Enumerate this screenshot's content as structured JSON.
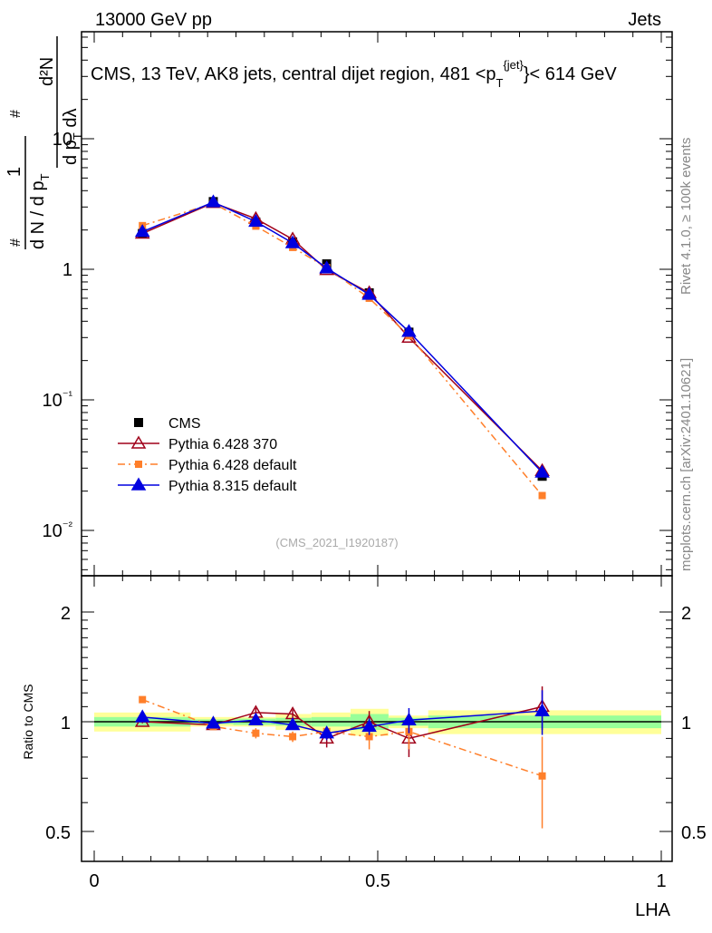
{
  "chart_data": [
    {
      "type": "line",
      "header_left": "13000 GeV pp",
      "header_right": "Jets",
      "title": "CMS, 13 TeV, AK8 jets, central dijet region, 481 <p_T^{jet}< 614 GeV",
      "title_main": "CMS, 13 TeV, AK8 jets, central dijet region, 481 <p",
      "title_sub": "T",
      "title_sup": "{jet}",
      "title_end": "}< 614 GeV",
      "ylabel": "1/(dN/dp_T) d²N/(dp_T dλ)",
      "ylabel_parts": {
        "num": "1",
        "den": "d N / d p",
        "den_sub": "T",
        "num2": "d²N",
        "den2": "d p",
        "den2_sub": "T",
        "den2_end": " dλ",
        "hash": "#"
      },
      "yscale": "log",
      "ylim": [
        0.005,
        60
      ],
      "ytick_labels": [
        "10",
        "1",
        "10⁻¹",
        "10⁻²"
      ],
      "ytick_values": [
        10,
        1,
        0.1,
        0.01
      ],
      "annotation": "(CMS_2021_I1920187)",
      "side_label_top": "Rivet 4.1.0, ≥ 100k events",
      "side_label_bottom": "mcplots.cern.ch [arXiv:2401.10621]",
      "legend_position": "lower-left",
      "x": [
        0.085,
        0.21,
        0.285,
        0.35,
        0.41,
        0.485,
        0.555,
        0.79
      ],
      "bin_edges": [
        0,
        0.17,
        0.245,
        0.32,
        0.383,
        0.452,
        0.519,
        0.589,
        1.0
      ],
      "series": [
        {
          "name": "CMS",
          "color": "#000000",
          "marker": "square",
          "values": [
            1.88,
            3.3,
            2.3,
            1.62,
            1.1,
            0.66,
            0.33,
            0.026
          ]
        },
        {
          "name": "Pythia 6.428 370",
          "color": "#a0001a",
          "marker": "open-triangle",
          "line": "solid",
          "values": [
            1.88,
            3.23,
            2.44,
            1.7,
            0.99,
            0.66,
            0.3,
            0.0286
          ]
        },
        {
          "name": "Pythia 6.428 default",
          "color": "#ff7f2a",
          "marker": "square",
          "line": "dashdot",
          "values": [
            2.16,
            3.2,
            2.14,
            1.47,
            1.03,
            0.6,
            0.31,
            0.0185
          ]
        },
        {
          "name": "Pythia 8.315 default",
          "color": "#0000e0",
          "marker": "triangle",
          "line": "solid",
          "values": [
            1.94,
            3.27,
            2.32,
            1.59,
            1.02,
            0.64,
            0.333,
            0.0278
          ]
        }
      ]
    },
    {
      "type": "line",
      "ylabel": "Ratio to CMS",
      "xlabel": "LHA",
      "yscale": "log",
      "ylim": [
        0.4,
        2.4
      ],
      "ytick_labels": [
        "2",
        "1",
        "0.5"
      ],
      "ytick_values": [
        2,
        1,
        0.5
      ],
      "xtick_labels": [
        "0",
        "0.5",
        "1"
      ],
      "xtick_values": [
        0,
        0.5,
        1
      ],
      "xlim": [
        0,
        1
      ],
      "band_total": [
        0.06,
        0.03,
        0.03,
        0.05,
        0.06,
        0.085,
        0.04,
        0.075
      ],
      "band_stat": [
        0.03,
        0.015,
        0.02,
        0.025,
        0.03,
        0.05,
        0.025,
        0.04
      ],
      "series": [
        {
          "name": "Pythia 6.428 370",
          "values": [
            1.0,
            0.98,
            1.06,
            1.05,
            0.9,
            1.0,
            0.9,
            1.1
          ],
          "errors": [
            0.01,
            0.02,
            0.03,
            0.03,
            0.05,
            0.07,
            0.1,
            0.15
          ]
        },
        {
          "name": "Pythia 6.428 default",
          "values": [
            1.15,
            0.97,
            0.93,
            0.91,
            0.94,
            0.91,
            0.94,
            0.71
          ],
          "errors": [
            0.02,
            0.02,
            0.03,
            0.03,
            0.03,
            0.07,
            0.1,
            0.2
          ]
        },
        {
          "name": "Pythia 8.315 default",
          "values": [
            1.03,
            0.99,
            1.01,
            0.98,
            0.93,
            0.97,
            1.01,
            1.07
          ],
          "errors": [
            0.02,
            0.02,
            0.03,
            0.03,
            0.04,
            0.05,
            0.08,
            0.15
          ]
        }
      ]
    }
  ]
}
